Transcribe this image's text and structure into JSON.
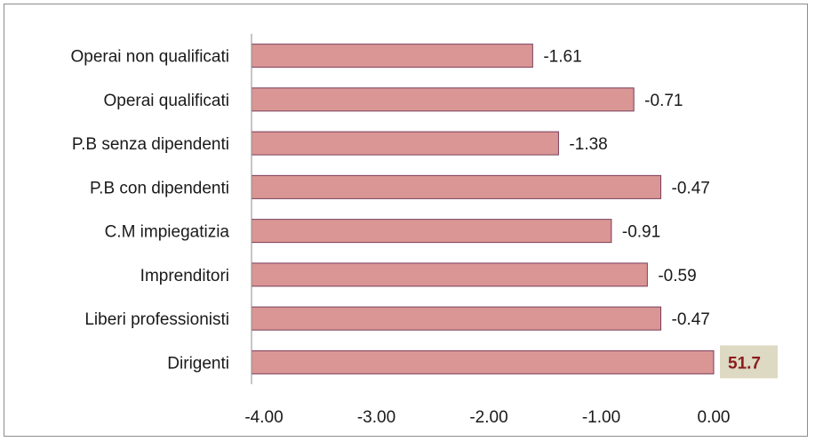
{
  "chart_data": {
    "type": "bar",
    "orientation": "horizontal",
    "categories": [
      "Operai non qualificati",
      "Operai qualificati",
      "P.B senza dipendenti",
      "P.B con dipendenti",
      "C.M impiegatizia",
      "Imprenditori",
      "Liberi professionisti",
      "Dirigenti"
    ],
    "values": [
      -1.61,
      -0.71,
      -1.38,
      -0.47,
      -0.91,
      -0.59,
      -0.47,
      51.7
    ],
    "value_labels": [
      "-1.61",
      "-0.71",
      "-1.38",
      "-0.47",
      "-0.91",
      "-0.59",
      "-0.47",
      "51.7"
    ],
    "xlim": [
      -4,
      0
    ],
    "xticks": [
      "-4.00",
      "-3.00",
      "-2.00",
      "-1.00",
      "0.00"
    ],
    "grid": false,
    "highlighted_category": "Dirigenti",
    "colors": {
      "bar_fill": "#d99694",
      "bar_stroke": "#7a3e5c",
      "highlight_text": "#8b1c1c",
      "highlight_bg": "#ddd9c3"
    }
  }
}
